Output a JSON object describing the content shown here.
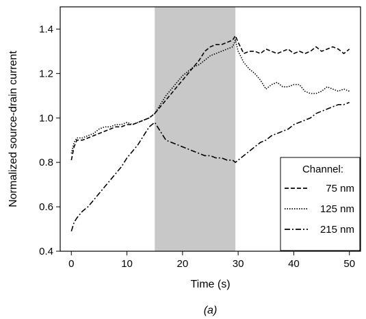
{
  "chart_data": {
    "type": "line",
    "xlabel": "Time (s)",
    "ylabel": "Normalized source-drain current",
    "caption": "(a)",
    "xlim": [
      -2,
      52
    ],
    "ylim": [
      0.4,
      1.5
    ],
    "xticks": [
      0,
      10,
      20,
      30,
      40,
      50
    ],
    "yticks": [
      0.4,
      0.6,
      0.8,
      1.0,
      1.2,
      1.4
    ],
    "xtick_labels": [
      "0",
      "10",
      "20",
      "30",
      "40",
      "50"
    ],
    "ytick_labels": [
      "0.4",
      "0.6",
      "0.8",
      "1.0",
      "1.2",
      "1.4"
    ],
    "shaded_region": {
      "x": [
        15,
        29.5
      ],
      "color": "#c8c8c8"
    },
    "grid": false,
    "legend": {
      "title": "Channel:",
      "position": "bottom-right",
      "entries": [
        "75 nm",
        "125 nm",
        "215 nm"
      ]
    },
    "series": [
      {
        "name": "75 nm",
        "line_style": "dashed",
        "x": [
          0,
          0.5,
          1,
          2,
          3,
          4,
          5,
          6,
          7,
          8,
          9,
          10,
          11,
          12,
          13,
          14,
          15,
          16,
          17,
          18,
          19,
          20,
          21,
          22,
          23,
          24,
          25,
          26,
          27,
          28,
          29,
          29.5,
          30,
          31,
          32,
          33,
          34,
          35,
          36,
          37,
          38,
          39,
          40,
          41,
          42,
          43,
          44,
          45,
          46,
          47,
          48,
          49,
          50
        ],
        "y": [
          0.81,
          0.87,
          0.9,
          0.9,
          0.91,
          0.92,
          0.93,
          0.94,
          0.95,
          0.96,
          0.96,
          0.97,
          0.97,
          0.98,
          0.99,
          1.0,
          1.02,
          1.05,
          1.08,
          1.11,
          1.14,
          1.17,
          1.2,
          1.23,
          1.26,
          1.3,
          1.32,
          1.33,
          1.33,
          1.34,
          1.35,
          1.37,
          1.34,
          1.29,
          1.3,
          1.3,
          1.29,
          1.31,
          1.3,
          1.29,
          1.3,
          1.31,
          1.29,
          1.3,
          1.29,
          1.3,
          1.32,
          1.3,
          1.31,
          1.32,
          1.31,
          1.29,
          1.31
        ]
      },
      {
        "name": "125 nm",
        "line_style": "dotted",
        "x": [
          0,
          0.5,
          1,
          2,
          3,
          4,
          5,
          6,
          7,
          8,
          9,
          10,
          11,
          12,
          13,
          14,
          15,
          16,
          17,
          18,
          19,
          20,
          21,
          22,
          23,
          24,
          25,
          26,
          27,
          28,
          29,
          29.5,
          30,
          31,
          32,
          33,
          34,
          35,
          36,
          37,
          38,
          39,
          40,
          41,
          42,
          43,
          44,
          45,
          46,
          47,
          48,
          49,
          50
        ],
        "y": [
          0.84,
          0.89,
          0.91,
          0.91,
          0.92,
          0.93,
          0.95,
          0.96,
          0.96,
          0.97,
          0.97,
          0.98,
          0.97,
          0.98,
          0.99,
          1.0,
          1.02,
          1.06,
          1.1,
          1.13,
          1.16,
          1.19,
          1.21,
          1.23,
          1.24,
          1.26,
          1.28,
          1.29,
          1.3,
          1.31,
          1.32,
          1.35,
          1.3,
          1.25,
          1.22,
          1.2,
          1.17,
          1.13,
          1.15,
          1.16,
          1.14,
          1.14,
          1.15,
          1.15,
          1.12,
          1.11,
          1.11,
          1.12,
          1.14,
          1.13,
          1.12,
          1.13,
          1.12
        ]
      },
      {
        "name": "215 nm",
        "line_style": "dash-dot",
        "x": [
          0,
          0.5,
          1,
          2,
          3,
          4,
          5,
          6,
          7,
          8,
          9,
          10,
          11,
          12,
          13,
          14,
          15,
          16,
          17,
          18,
          19,
          20,
          21,
          22,
          23,
          24,
          25,
          26,
          27,
          28,
          29,
          29.5,
          30,
          31,
          32,
          33,
          34,
          35,
          36,
          37,
          38,
          39,
          40,
          41,
          42,
          43,
          44,
          45,
          46,
          47,
          48,
          49,
          50
        ],
        "y": [
          0.49,
          0.53,
          0.55,
          0.58,
          0.6,
          0.63,
          0.66,
          0.69,
          0.72,
          0.75,
          0.78,
          0.82,
          0.85,
          0.88,
          0.92,
          0.96,
          0.98,
          0.94,
          0.9,
          0.89,
          0.88,
          0.87,
          0.86,
          0.85,
          0.84,
          0.83,
          0.83,
          0.82,
          0.82,
          0.81,
          0.81,
          0.8,
          0.81,
          0.83,
          0.85,
          0.87,
          0.89,
          0.9,
          0.92,
          0.93,
          0.94,
          0.95,
          0.97,
          0.98,
          0.99,
          1.0,
          1.02,
          1.03,
          1.04,
          1.05,
          1.06,
          1.06,
          1.07
        ]
      }
    ]
  }
}
